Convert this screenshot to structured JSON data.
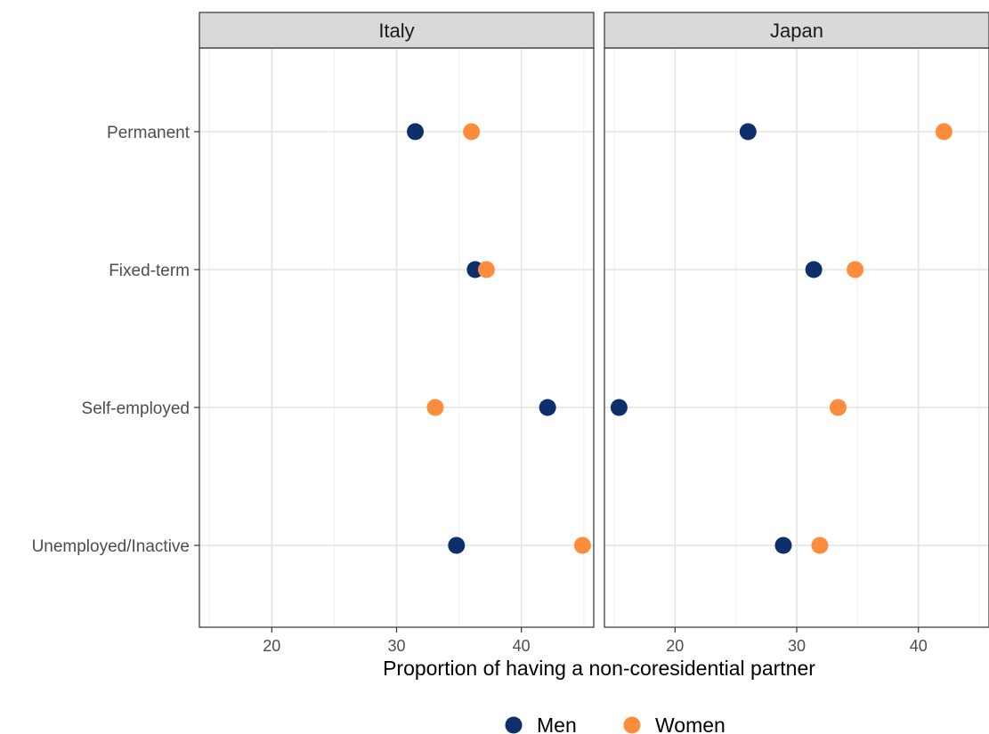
{
  "chart_data": {
    "type": "scatter",
    "xlabel": "Proportion of having a non-coresidential partner",
    "categories": [
      "Permanent",
      "Fixed-term",
      "Self-employed",
      "Unemployed/Inactive"
    ],
    "x_ticks": [
      20,
      30,
      40
    ],
    "grid": true,
    "legend_position": "bottom",
    "colors": {
      "Men": "#0d2f6b",
      "Women": "#fd8d3c"
    },
    "panels": [
      {
        "title": "Italy",
        "xlim": [
          14.2,
          45.8
        ],
        "series": [
          {
            "name": "Men",
            "values": [
              31.5,
              36.3,
              42.1,
              34.8
            ]
          },
          {
            "name": "Women",
            "values": [
              36.0,
              37.2,
              33.1,
              44.9
            ]
          }
        ]
      },
      {
        "title": "Japan",
        "xlim": [
          14.2,
          45.8
        ],
        "series": [
          {
            "name": "Men",
            "values": [
              26.0,
              31.4,
              15.4,
              28.9
            ]
          },
          {
            "name": "Women",
            "values": [
              42.1,
              34.8,
              33.4,
              31.9
            ]
          }
        ]
      }
    ]
  }
}
